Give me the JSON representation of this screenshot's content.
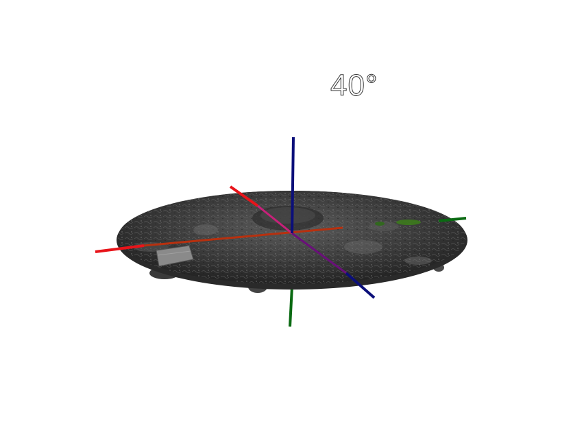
{
  "view": {
    "angle_label": "40°"
  },
  "colors": {
    "background": "#ffffff",
    "surface": "#3a3a3a",
    "x_axis": "#e8141a",
    "y_axis": "#0a6a12",
    "z_axis": "#0b0f7a"
  }
}
